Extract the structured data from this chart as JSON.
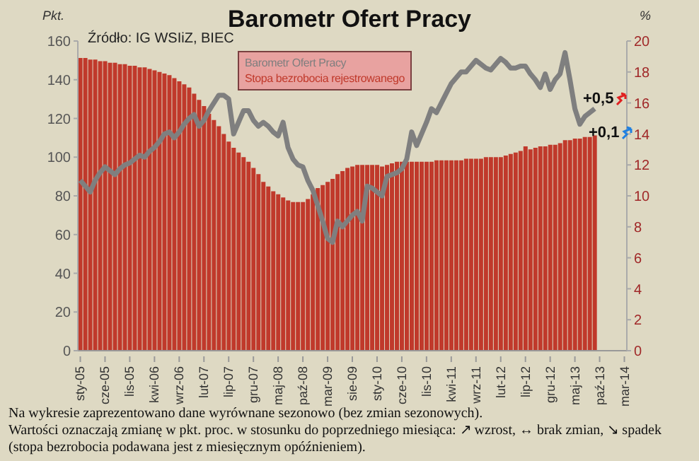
{
  "chart_data": {
    "type": "bar",
    "title": "Barometr Ofert Pracy",
    "ylabel": "Pkt.",
    "y2label": "%",
    "categories": [
      "sty-05",
      null,
      null,
      null,
      null,
      "cze-05",
      null,
      null,
      null,
      null,
      "lis-05",
      null,
      null,
      null,
      null,
      "kwi-06",
      null,
      null,
      null,
      null,
      "wrz-06",
      null,
      null,
      null,
      null,
      "lut-07",
      null,
      null,
      null,
      null,
      "lip-07",
      null,
      null,
      null,
      null,
      "gru-07",
      null,
      null,
      null,
      null,
      "maj-08",
      null,
      null,
      null,
      null,
      "paź-08",
      null,
      null,
      null,
      null,
      "mar-09",
      null,
      null,
      null,
      null,
      "sie-09",
      null,
      null,
      null,
      null,
      "sty-10",
      null,
      null,
      null,
      null,
      "cze-10",
      null,
      null,
      null,
      null,
      "lis-10",
      null,
      null,
      null,
      null,
      "kwi-11",
      null,
      null,
      null,
      null,
      "wrz-11",
      null,
      null,
      null,
      null,
      "lut-12",
      null,
      null,
      null,
      null,
      "lip-12",
      null,
      null,
      null,
      null,
      "gru-12",
      null,
      null,
      null,
      null,
      "maj-13",
      null,
      null,
      null,
      null,
      "paź-13",
      null,
      null,
      null,
      null,
      "mar-14"
    ],
    "series": [
      {
        "name": "Barometr Ofert Pracy",
        "type": "line",
        "color": "#7f7f7f",
        "values": [
          88,
          85,
          82,
          88,
          92,
          95,
          93,
          91,
          94,
          96,
          97,
          99,
          101,
          100,
          103,
          105,
          108,
          112,
          113,
          110,
          113,
          117,
          120,
          122,
          116,
          119,
          124,
          128,
          132,
          132,
          130,
          112,
          118,
          124,
          124,
          119,
          116,
          118,
          116,
          113,
          111,
          118,
          105,
          99,
          96,
          95,
          88,
          83,
          75,
          67,
          58,
          56,
          67,
          64,
          67,
          70,
          72,
          67,
          85,
          84,
          82,
          80,
          90,
          91,
          92,
          94,
          99,
          113,
          106,
          112,
          118,
          125,
          123,
          128,
          133,
          138,
          141,
          144,
          144,
          147,
          150,
          148,
          146,
          145,
          148,
          151,
          149,
          146,
          146,
          147,
          147,
          143,
          140,
          136,
          143,
          135,
          140,
          143,
          154,
          140,
          125,
          117,
          121,
          123,
          125,
          null,
          null,
          null,
          null,
          null,
          null
        ]
      },
      {
        "name": "Stopa bezrobocia rejestrowanego",
        "axis": "y2",
        "color": "#c0392b",
        "values": [
          18.9,
          18.9,
          18.8,
          18.8,
          18.7,
          18.7,
          18.6,
          18.6,
          18.5,
          18.5,
          18.4,
          18.4,
          18.3,
          18.3,
          18.2,
          18.1,
          18.0,
          17.9,
          17.8,
          17.6,
          17.4,
          17.2,
          17.0,
          16.6,
          16.2,
          15.8,
          15.3,
          14.9,
          14.5,
          14.0,
          13.5,
          13.1,
          12.8,
          12.5,
          12.2,
          11.8,
          11.4,
          10.9,
          10.6,
          10.3,
          10.1,
          9.9,
          9.7,
          9.6,
          9.6,
          9.6,
          9.8,
          10.1,
          10.5,
          10.7,
          10.9,
          11.1,
          11.4,
          11.6,
          11.8,
          11.9,
          12.0,
          12.0,
          12.0,
          12.0,
          12.0,
          11.9,
          12.0,
          12.1,
          12.2,
          12.2,
          12.2,
          12.2,
          12.2,
          12.2,
          12.2,
          12.2,
          12.3,
          12.3,
          12.3,
          12.3,
          12.3,
          12.3,
          12.4,
          12.4,
          12.4,
          12.4,
          12.5,
          12.5,
          12.5,
          12.5,
          12.6,
          12.7,
          12.8,
          12.9,
          13.2,
          13.0,
          13.1,
          13.2,
          13.2,
          13.3,
          13.3,
          13.4,
          13.6,
          13.6,
          13.7,
          13.7,
          13.8,
          13.8,
          13.9,
          null,
          null,
          null,
          null,
          null,
          null
        ]
      }
    ],
    "ylim": [
      0,
      160
    ],
    "yticks": [
      0,
      20,
      40,
      60,
      80,
      100,
      120,
      140,
      160
    ],
    "y2lim": [
      0,
      20
    ],
    "y2ticks": [
      0,
      2,
      4,
      6,
      8,
      10,
      12,
      14,
      16,
      18,
      20
    ],
    "legend": "top",
    "annotations": [
      "Źródło: IG WSIiZ, BIEC",
      "+0,5",
      "+0,1",
      "Na wykresie zaprezentowano dane wyrównane sezonowo (bez zmian sezonowych).",
      "Wartości oznaczają zmianę w pkt. proc. w stosunku do poprzedniego miesiąca: ↗ wzrost, ↔ brak zmian, ↘ spadek (stopa bezrobocia podawana jest z miesięcznym opóźnieniem)."
    ]
  }
}
